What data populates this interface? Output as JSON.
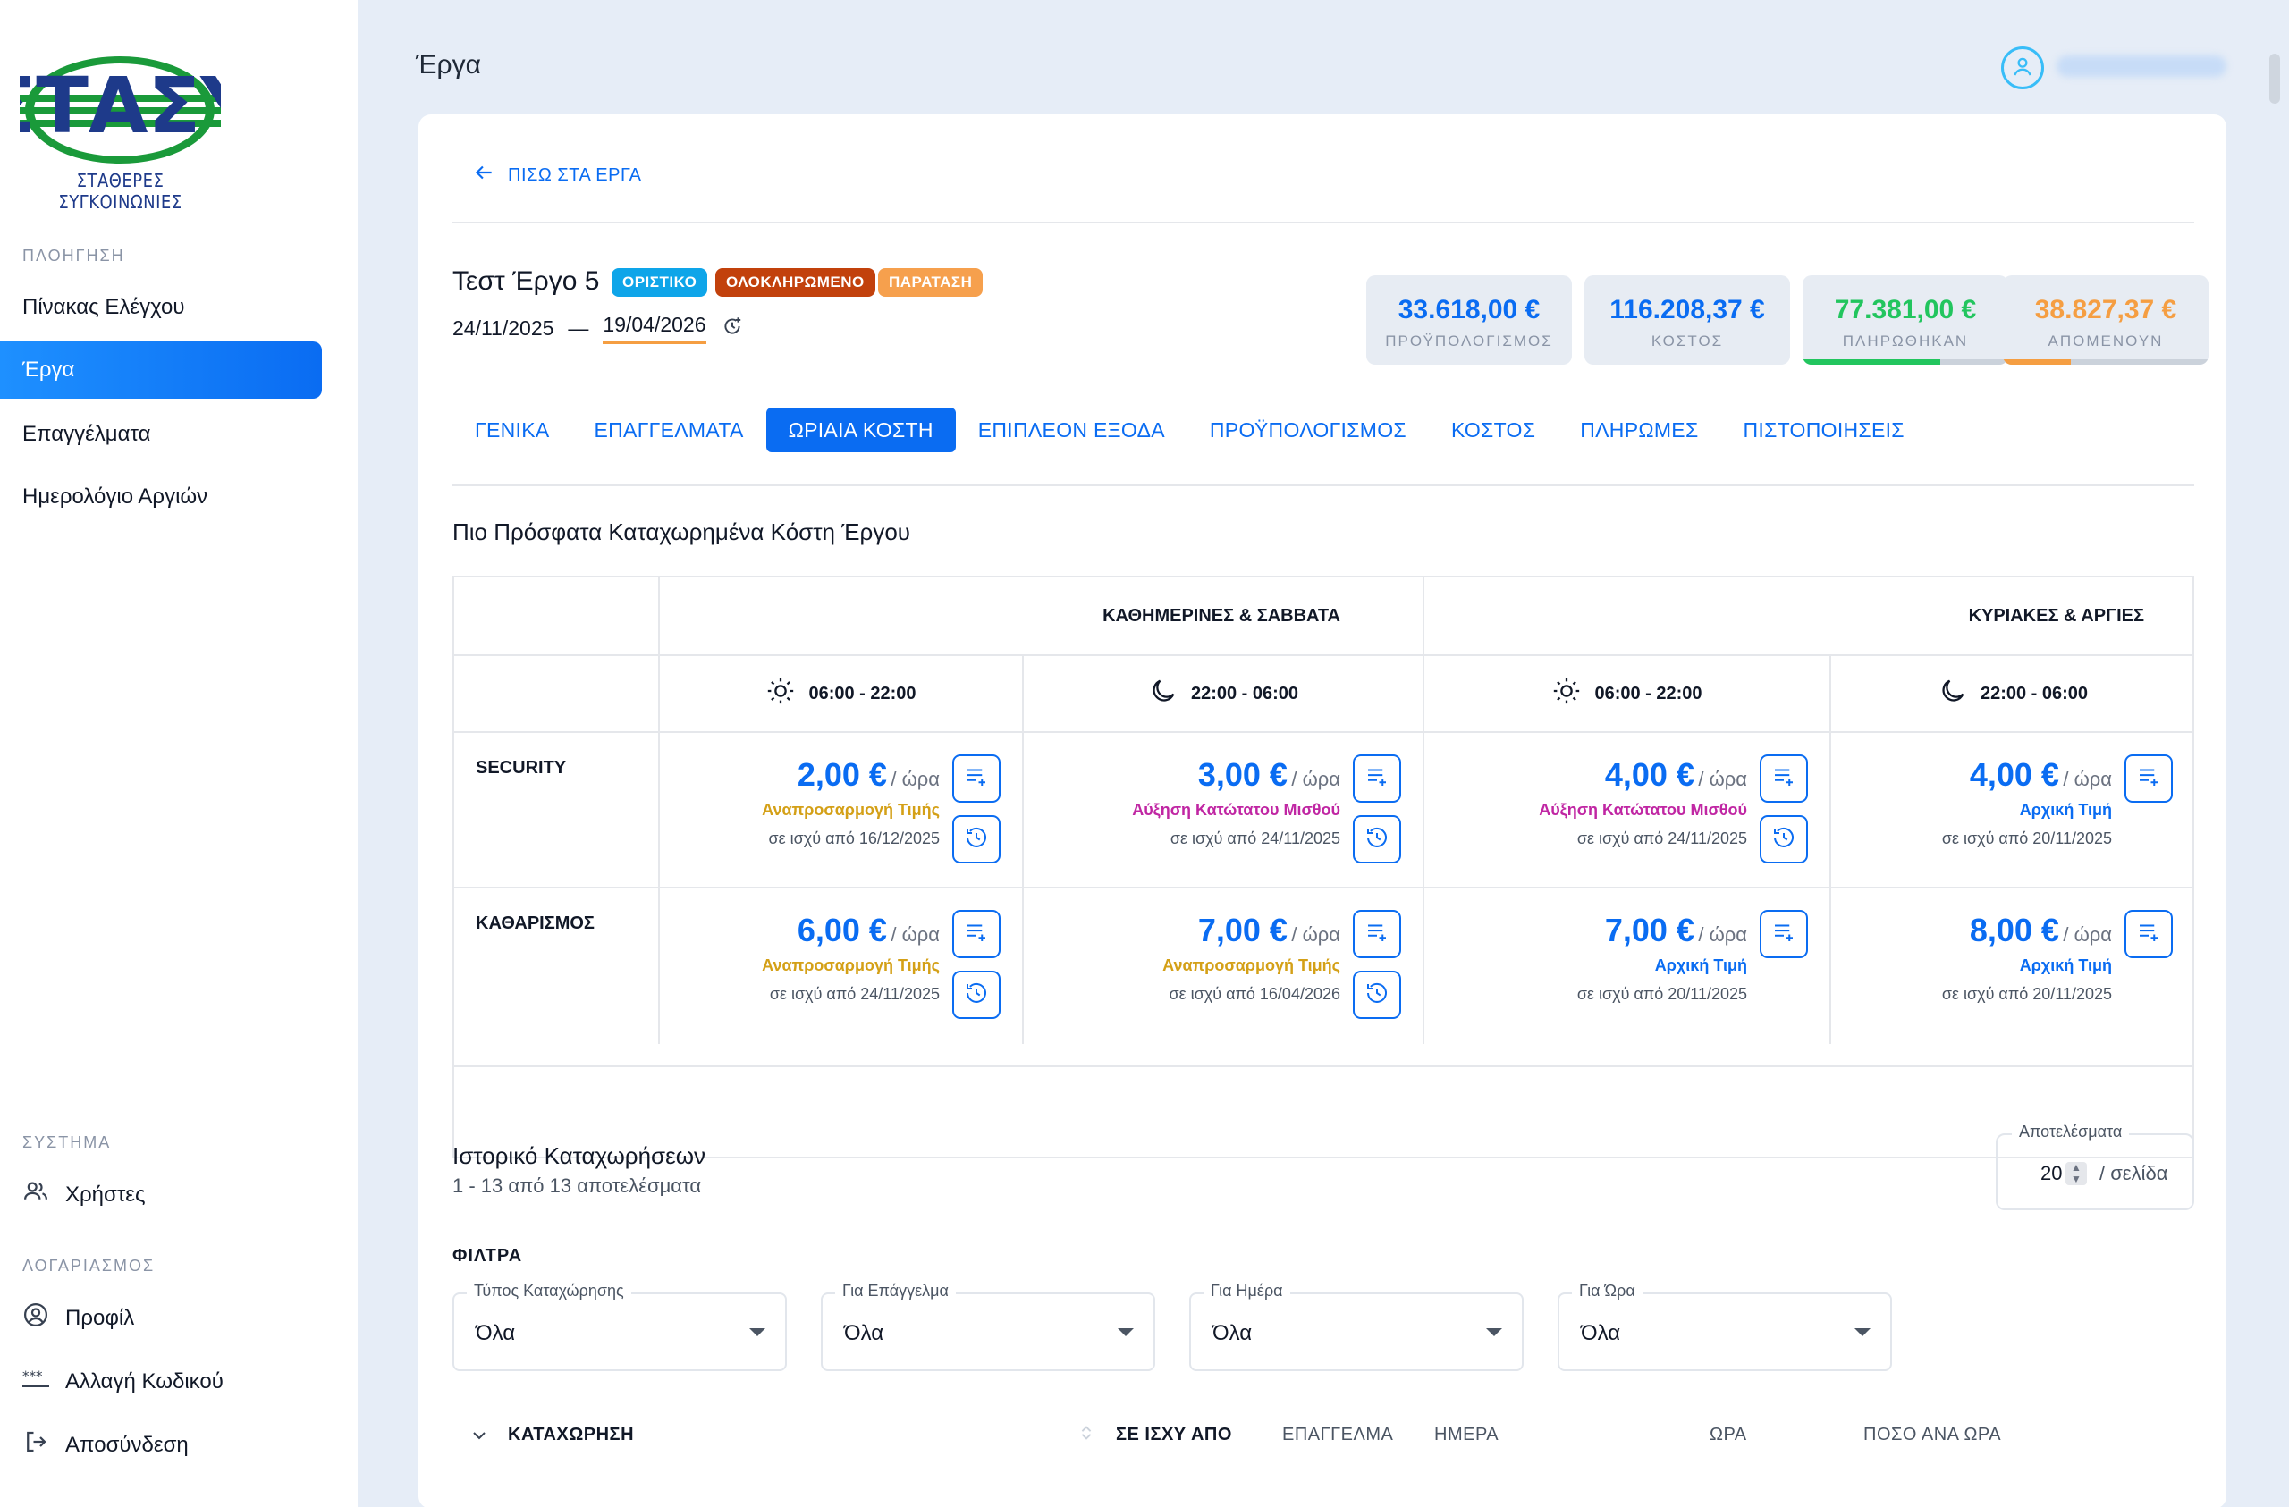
{
  "brand": {
    "logo_text": "ΣΤΑΣΥ",
    "caption": "ΣΤΑΘΕΡΕΣ ΣΥΓΚΟΙΝΩΝΙΕΣ",
    "colors": {
      "green": "#1a9a3a",
      "blue": "#1e3a8a"
    }
  },
  "sidebar": {
    "nav_section": "ΠΛΟΗΓΗΣΗ",
    "nav_items": [
      {
        "label": "Πίνακας Ελέγχου"
      },
      {
        "label": "Έργα",
        "active": true
      },
      {
        "label": "Επαγγέλματα"
      },
      {
        "label": "Ημερολόγιο Αργιών"
      }
    ],
    "system_section": "ΣΥΣΤΗΜΑ",
    "system_items": [
      {
        "label": "Χρήστες",
        "icon": "users-icon"
      }
    ],
    "account_section": "ΛΟΓΑΡΙΑΣΜΟΣ",
    "account_items": [
      {
        "label": "Προφίλ",
        "icon": "profile-icon"
      },
      {
        "label": "Αλλαγή Κωδικού",
        "icon": "password-icon"
      },
      {
        "label": "Αποσύνδεση",
        "icon": "logout-icon"
      }
    ]
  },
  "header": {
    "title": "Έργα",
    "user_icon": "user-icon"
  },
  "project": {
    "back_label": "ΠΙΣΩ ΣΤΑ ΕΡΓΑ",
    "name": "Τεστ Έργο 5",
    "badges": [
      {
        "label": "ΟΡΙΣΤΙΚΟ",
        "color": "#0ea5e9"
      },
      {
        "label": "ΟΛΟΚΛΗΡΩΜΕΝΟ",
        "color": "#c2410c"
      },
      {
        "label": "ΠΑΡΑΤΑΣΗ",
        "color": "#f6a04d"
      }
    ],
    "start_date": "24/11/2025",
    "date_separator": "—",
    "end_date": "19/04/2026",
    "stats": [
      {
        "value": "33.618,00 €",
        "label": "ΠΡΟΫΠΟΛΟΓΙΣΜΟΣ",
        "color": "#0a6cf2"
      },
      {
        "value": "116.208,37 €",
        "label": "ΚΟΣΤΟΣ",
        "color": "#0a6cf2"
      },
      {
        "value": "77.381,00 €",
        "label": "ΠΛΗΡΩΘΗΚΑΝ",
        "color": "#22c55e",
        "progress": 0.67
      },
      {
        "value": "38.827,37 €",
        "label": "ΑΠΟΜΕΝΟΥΝ",
        "color": "#f59e42",
        "progress": 0.33
      }
    ]
  },
  "tabs": [
    {
      "label": "ΓΕΝΙΚΑ"
    },
    {
      "label": "ΕΠΑΓΓΕΛΜΑΤΑ"
    },
    {
      "label": "ΩΡΙΑΙΑ ΚΟΣΤΗ",
      "active": true
    },
    {
      "label": "ΕΠΙΠΛΕΟΝ ΕΞΟΔΑ"
    },
    {
      "label": "ΠΡΟΫΠΟΛΟΓΙΣΜΟΣ"
    },
    {
      "label": "ΚΟΣΤΟΣ"
    },
    {
      "label": "ΠΛΗΡΩΜΕΣ"
    },
    {
      "label": "ΠΙΣΤΟΠΟΙΗΣΕΙΣ"
    }
  ],
  "costs": {
    "title": "Πιο Πρόσφατα Καταχωρημένα Κόστη Έργου",
    "groups": [
      "ΚΑΘΗΜΕΡΙΝΕΣ & ΣΑΒΒΑΤΑ",
      "ΚΥΡΙΑΚΕΣ & ΑΡΓΙΕΣ"
    ],
    "time_slots": [
      {
        "label": "06:00 - 22:00",
        "icon": "sun-icon"
      },
      {
        "label": "22:00 - 06:00",
        "icon": "moon-icon"
      },
      {
        "label": "06:00 - 22:00",
        "icon": "sun-icon"
      },
      {
        "label": "22:00 - 06:00",
        "icon": "moon-icon"
      }
    ],
    "unit": "/ ώρα",
    "rows": [
      {
        "label": "SECURITY",
        "cells": [
          {
            "amount": "2,00 €",
            "type": "Αναπροσαρμογή Τιμής",
            "since": "σε ισχύ από 16/12/2025",
            "history": true
          },
          {
            "amount": "3,00 €",
            "type": "Αύξηση Κατώτατου Μισθού",
            "since": "σε ισχύ από 24/11/2025",
            "history": true
          },
          {
            "amount": "4,00 €",
            "type": "Αύξηση Κατώτατου Μισθού",
            "since": "σε ισχύ από 24/11/2025",
            "history": true
          },
          {
            "amount": "4,00 €",
            "type": "Αρχική Τιμή",
            "since": "σε ισχύ από 20/11/2025",
            "history": false
          }
        ]
      },
      {
        "label": "ΚΑΘΑΡΙΣΜΟΣ",
        "cells": [
          {
            "amount": "6,00 €",
            "type": "Αναπροσαρμογή Τιμής",
            "since": "σε ισχύ από 24/11/2025",
            "history": true
          },
          {
            "amount": "7,00 €",
            "type": "Αναπροσαρμογή Τιμής",
            "since": "σε ισχύ από 16/04/2026",
            "history": true
          },
          {
            "amount": "7,00 €",
            "type": "Αρχική Τιμή",
            "since": "σε ισχύ από 20/11/2025",
            "history": false
          },
          {
            "amount": "8,00 €",
            "type": "Αρχική Τιμή",
            "since": "σε ισχύ από 20/11/2025",
            "history": false
          }
        ]
      }
    ]
  },
  "history": {
    "title": "Ιστορικό Καταχωρήσεων",
    "subtitle": "1 - 13 από 13 αποτελέσματα",
    "per_page_label": "Αποτελέσματα",
    "per_page_value": "20",
    "per_page_suffix": "/ σελίδα",
    "filters_label": "ΦΙΛΤΡΑ",
    "filters": [
      {
        "label": "Τύπος Καταχώρησης",
        "value": "Όλα"
      },
      {
        "label": "Για Επάγγελμα",
        "value": "Όλα"
      },
      {
        "label": "Για Ημέρα",
        "value": "Όλα"
      },
      {
        "label": "Για Ώρα",
        "value": "Όλα"
      }
    ],
    "columns": [
      "ΚΑΤΑΧΩΡΗΣΗ",
      "ΣΕ ΙΣΧΥ ΑΠΟ",
      "ΕΠΑΓΓΕΛΜΑ",
      "ΗΜΕΡΑ",
      "ΩΡΑ",
      "ΠΟΣΟ ΑΝΑ ΩΡΑ"
    ]
  }
}
